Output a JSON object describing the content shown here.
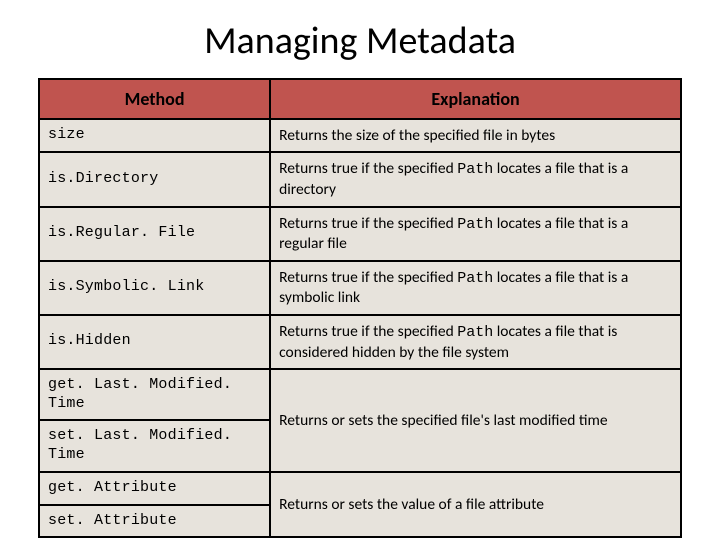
{
  "page_title": "Managing Metadata",
  "table": {
    "header_bg": "#c0544f",
    "cell_bg": "#e7e3dc",
    "border_color": "#000000",
    "columns": [
      {
        "label": "Method",
        "width_pct": 36
      },
      {
        "label": "Explanation",
        "width_pct": 64
      }
    ],
    "rows": [
      {
        "method": "size",
        "explanation_pre": "Returns the size of the specified file in bytes",
        "path_word": "",
        "explanation_post": "",
        "rowspan": 1
      },
      {
        "method": "is.Directory",
        "explanation_pre": "Returns true if the specified ",
        "path_word": "Path",
        "explanation_post": " locates a file that is a directory",
        "rowspan": 1
      },
      {
        "method": "is.Regular. File",
        "explanation_pre": "Returns true if the specified ",
        "path_word": "Path",
        "explanation_post": " locates a file that is a regular file",
        "rowspan": 1
      },
      {
        "method": "is.Symbolic. Link",
        "explanation_pre": "Returns true if the specified ",
        "path_word": "Path",
        "explanation_post": " locates a file that is a symbolic link",
        "rowspan": 1
      },
      {
        "method": "is.Hidden",
        "explanation_pre": "Returns true if the specified ",
        "path_word": "Path",
        "explanation_post": " locates a file that is considered hidden by the file system",
        "rowspan": 1
      },
      {
        "method": "get. Last. Modified. Time",
        "explanation_pre": "Returns or sets the specified file's last modified time",
        "path_word": "",
        "explanation_post": "",
        "rowspan": 2
      },
      {
        "method": "set. Last. Modified. Time",
        "explanation_pre": "",
        "path_word": "",
        "explanation_post": "",
        "rowspan": 0
      },
      {
        "method": "get. Attribute",
        "explanation_pre": "Returns or sets the value of a file attribute",
        "path_word": "",
        "explanation_post": "",
        "rowspan": 2
      },
      {
        "method": "set. Attribute",
        "explanation_pre": "",
        "path_word": "",
        "explanation_post": "",
        "rowspan": 0
      }
    ]
  }
}
